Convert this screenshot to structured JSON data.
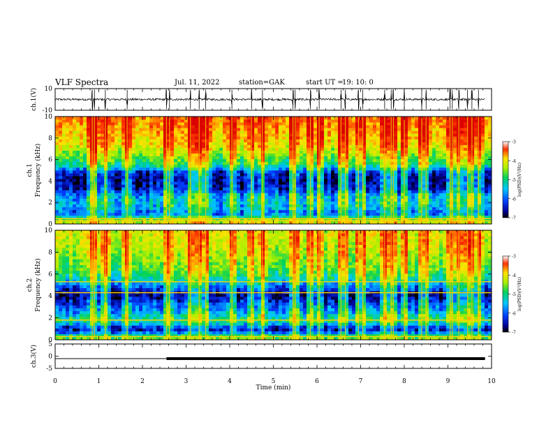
{
  "header": {
    "title": "VLF Spectra",
    "date": "Jul. 11, 2022",
    "station": "station=GAK",
    "ut_label": "start UT =",
    "ut_value": "19: 10: 0"
  },
  "chart_data": [
    {
      "type": "line",
      "id": "ch1-waveform",
      "ylabel": "ch.1(V)",
      "ylim": [
        -10,
        10
      ],
      "y_ticks": [
        "10",
        "-10"
      ],
      "xlim": [
        0,
        10
      ],
      "baseline": 0,
      "noise_amplitude": 1,
      "spike_times_min": [
        0.85,
        0.9,
        1.15,
        1.65,
        2.55,
        2.62,
        3.1,
        3.3,
        3.45,
        4.05,
        4.5,
        4.75,
        5.45,
        5.5,
        5.85,
        6.05,
        6.55,
        6.65,
        6.95,
        7.05,
        7.55,
        7.7,
        7.75,
        8.0,
        8.4,
        8.5,
        9.05,
        9.1,
        9.25,
        9.45,
        9.55,
        9.7
      ]
    },
    {
      "type": "heatmap",
      "id": "ch1-spectrogram",
      "ylabel": "ch.1 Frequency (kHz)",
      "ylim": [
        0,
        10
      ],
      "y_ticks": [
        "0",
        "2",
        "4",
        "6",
        "8",
        "10"
      ],
      "xlim": [
        0,
        10
      ],
      "colorbar": {
        "label": "log(PSD)(V²/Hz)",
        "range": [
          -7,
          -3
        ],
        "ticks": [
          "-3",
          "-4",
          "-5",
          "-6",
          "-7"
        ]
      },
      "profile_log_psd": [
        {
          "f": 0.2,
          "v": -4.6
        },
        {
          "f": 0.6,
          "v": -5.4
        },
        {
          "f": 1.0,
          "v": -6.2
        },
        {
          "f": 1.5,
          "v": -5.9
        },
        {
          "f": 2.0,
          "v": -5.8
        },
        {
          "f": 2.6,
          "v": -5.9
        },
        {
          "f": 3.2,
          "v": -6.5
        },
        {
          "f": 4.0,
          "v": -6.7
        },
        {
          "f": 4.8,
          "v": -6.5
        },
        {
          "f": 5.5,
          "v": -5.4
        },
        {
          "f": 6.5,
          "v": -4.9
        },
        {
          "f": 7.5,
          "v": -4.4
        },
        {
          "f": 8.5,
          "v": -4.2
        },
        {
          "f": 9.5,
          "v": -4.0
        }
      ],
      "tone_lines_khz": [
        0.3,
        0.5
      ],
      "burst_times_min": [
        0.85,
        0.9,
        1.15,
        1.65,
        2.55,
        2.62,
        3.1,
        3.3,
        3.45,
        4.05,
        4.5,
        4.75,
        5.45,
        5.5,
        5.85,
        6.05,
        6.55,
        6.65,
        6.95,
        7.05,
        7.55,
        7.7,
        7.75,
        8.0,
        8.4,
        8.5,
        9.05,
        9.1,
        9.25,
        9.45,
        9.55,
        9.7
      ]
    },
    {
      "type": "heatmap",
      "id": "ch2-spectrogram",
      "ylabel": "ch.2 Frequency (kHz)",
      "ylim": [
        0,
        10
      ],
      "y_ticks": [
        "0",
        "2",
        "4",
        "6",
        "8",
        "10"
      ],
      "xlim": [
        0,
        10
      ],
      "colorbar": {
        "label": "log(PSD)(V²/Hz)",
        "range": [
          -7,
          -3
        ],
        "ticks": [
          "-3",
          "-4",
          "-5",
          "-6",
          "-7"
        ]
      },
      "profile_log_psd": [
        {
          "f": 0.2,
          "v": -5.0
        },
        {
          "f": 0.6,
          "v": -6.0
        },
        {
          "f": 1.0,
          "v": -6.7
        },
        {
          "f": 1.6,
          "v": -5.6
        },
        {
          "f": 2.0,
          "v": -5.5
        },
        {
          "f": 2.6,
          "v": -6.0
        },
        {
          "f": 3.2,
          "v": -6.3
        },
        {
          "f": 4.0,
          "v": -6.8
        },
        {
          "f": 4.8,
          "v": -6.3
        },
        {
          "f": 5.5,
          "v": -5.6
        },
        {
          "f": 6.5,
          "v": -5.1
        },
        {
          "f": 7.5,
          "v": -4.9
        },
        {
          "f": 8.5,
          "v": -4.7
        },
        {
          "f": 9.5,
          "v": -4.6
        }
      ],
      "tone_lines_khz": [
        0.3,
        1.8,
        4.3,
        5.3
      ],
      "burst_times_min": [
        0.85,
        0.9,
        1.15,
        1.65,
        2.55,
        2.62,
        3.1,
        3.3,
        3.45,
        4.05,
        4.5,
        4.75,
        5.45,
        5.5,
        5.85,
        6.05,
        6.55,
        6.65,
        6.95,
        7.05,
        7.55,
        7.7,
        7.75,
        8.0,
        8.4,
        8.5,
        9.05,
        9.1,
        9.25,
        9.45,
        9.55,
        9.7
      ]
    },
    {
      "type": "line",
      "id": "ch3-trace",
      "ylabel": "ch.3(V)",
      "ylim": [
        -5,
        5
      ],
      "y_ticks": [
        "5",
        "0",
        "-5"
      ],
      "xlim": [
        0,
        10
      ],
      "segments": [
        {
          "x0": 0,
          "x1": 2.55,
          "y": -1,
          "weight": "thin"
        },
        {
          "x0": 2.55,
          "x1": 9.85,
          "y": -1,
          "weight": "thick"
        }
      ]
    }
  ],
  "x_axis": {
    "xlabel": "Time (min)",
    "xlim": [
      0,
      10
    ],
    "ticks": [
      "0",
      "1",
      "2",
      "3",
      "4",
      "5",
      "6",
      "7",
      "8",
      "9",
      "10"
    ]
  }
}
